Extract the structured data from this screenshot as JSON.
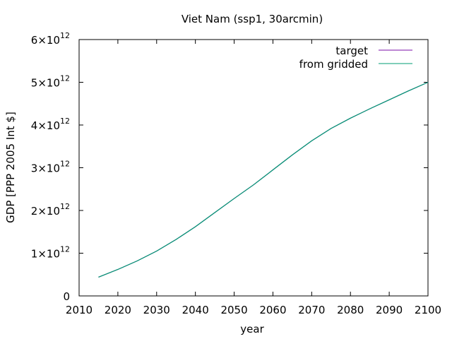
{
  "chart_data": {
    "type": "line",
    "title": "Viet Nam (ssp1, 30arcmin)",
    "xlabel": "year",
    "ylabel": "GDP [PPP 2005 Int $]",
    "xlim": [
      2010,
      2100
    ],
    "ylim": [
      0,
      6000000000000.0
    ],
    "x_ticks": [
      2010,
      2020,
      2030,
      2040,
      2050,
      2060,
      2070,
      2080,
      2090,
      2100
    ],
    "y_ticks": [
      {
        "value": 0,
        "mantissa": "0",
        "exponent": ""
      },
      {
        "value": 1000000000000.0,
        "mantissa": "1×10",
        "exponent": "12"
      },
      {
        "value": 2000000000000.0,
        "mantissa": "2×10",
        "exponent": "12"
      },
      {
        "value": 3000000000000.0,
        "mantissa": "3×10",
        "exponent": "12"
      },
      {
        "value": 4000000000000.0,
        "mantissa": "4×10",
        "exponent": "12"
      },
      {
        "value": 5000000000000.0,
        "mantissa": "5×10",
        "exponent": "12"
      },
      {
        "value": 6000000000000.0,
        "mantissa": "6×10",
        "exponent": "12"
      }
    ],
    "legend_position": "top-right",
    "grid": false,
    "x": [
      2015,
      2020,
      2025,
      2030,
      2035,
      2040,
      2045,
      2050,
      2055,
      2060,
      2065,
      2070,
      2075,
      2080,
      2085,
      2090,
      2095,
      2100
    ],
    "series": [
      {
        "name": "target",
        "color": "#7b0fa8",
        "values": [
          440000000000.0,
          620000000000.0,
          820000000000.0,
          1050000000000.0,
          1320000000000.0,
          1620000000000.0,
          1950000000000.0,
          2280000000000.0,
          2600000000000.0,
          2950000000000.0,
          3300000000000.0,
          3630000000000.0,
          3920000000000.0,
          4160000000000.0,
          4380000000000.0,
          4590000000000.0,
          4800000000000.0,
          5000000000000.0
        ]
      },
      {
        "name": "from gridded",
        "color": "#009e73",
        "values": [
          440000000000.0,
          620000000000.0,
          820000000000.0,
          1050000000000.0,
          1320000000000.0,
          1620000000000.0,
          1950000000000.0,
          2280000000000.0,
          2600000000000.0,
          2950000000000.0,
          3300000000000.0,
          3630000000000.0,
          3920000000000.0,
          4160000000000.0,
          4380000000000.0,
          4590000000000.0,
          4800000000000.0,
          5000000000000.0
        ]
      }
    ]
  }
}
